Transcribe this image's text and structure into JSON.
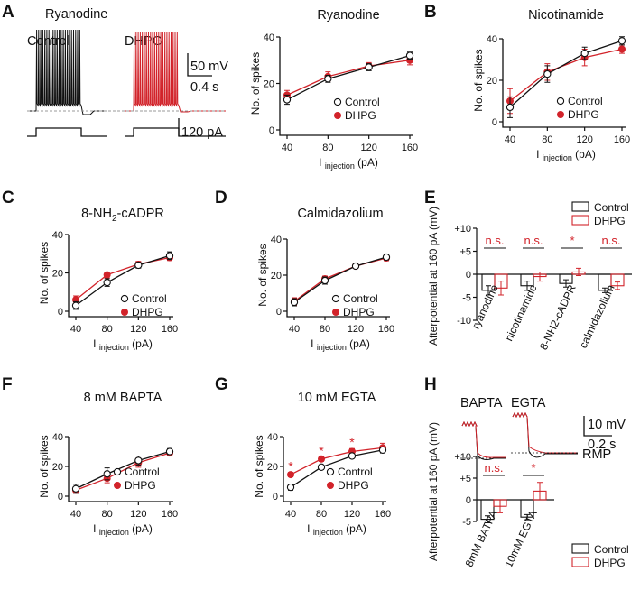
{
  "figure": {
    "panel_letters": [
      "A",
      "B",
      "C",
      "D",
      "E",
      "F",
      "G",
      "H"
    ],
    "legend": {
      "control": "Control",
      "dhpg": "DHPG"
    },
    "colors": {
      "control": "#111111",
      "dhpg": "#d2232a",
      "gray": "#999999"
    },
    "ylabel_spikes": "No. of spikes",
    "xlabel_main": "I",
    "xlabel_sub": "injection",
    "xlabel_unit": "(pA)",
    "afterpotential_label": "Afterpotential at 160 pA (mV)",
    "panel_a_traces": {
      "title": "Ryanodine",
      "control_label": "Control",
      "dhpg_label": "DHPG",
      "scale_mv": "50 mV",
      "scale_s": "0.4 s",
      "scale_pa": "120 pA"
    },
    "panel_h_traces": {
      "bapta_label": "BAPTA",
      "egta_label": "EGTA",
      "scale_mv": "10 mV",
      "scale_s": "0.2 s",
      "rmp_label": "RMP"
    }
  },
  "chart_data": [
    {
      "id": "A",
      "type": "line",
      "title": "Ryanodine",
      "x": [
        40,
        80,
        120,
        160
      ],
      "xlim": [
        40,
        160
      ],
      "ylim": [
        0,
        40
      ],
      "xticks": [
        "40",
        "80",
        "120",
        "160"
      ],
      "yticks": [
        "0",
        "20",
        "40"
      ],
      "series": [
        {
          "name": "Control",
          "values": [
            13,
            22,
            27,
            32
          ],
          "err": [
            2,
            1.5,
            1.5,
            1.5
          ]
        },
        {
          "name": "DHPG",
          "values": [
            15,
            23,
            27.5,
            30
          ],
          "err": [
            2,
            2,
            1.5,
            2
          ]
        }
      ]
    },
    {
      "id": "B",
      "type": "line",
      "title": "Nicotinamide",
      "x": [
        40,
        80,
        120,
        160
      ],
      "xlim": [
        40,
        160
      ],
      "ylim": [
        0,
        40
      ],
      "xticks": [
        "40",
        "80",
        "120",
        "160"
      ],
      "yticks": [
        "0",
        "20",
        "40"
      ],
      "series": [
        {
          "name": "Control",
          "values": [
            7,
            23,
            33,
            39
          ],
          "err": [
            5,
            4,
            3,
            2
          ]
        },
        {
          "name": "DHPG",
          "values": [
            10,
            24,
            31,
            35
          ],
          "err": [
            6,
            4,
            4,
            2
          ]
        }
      ]
    },
    {
      "id": "C",
      "type": "line",
      "title": "8-NH",
      "title_sub": "2",
      "title_rest": "-cADPR",
      "x": [
        40,
        80,
        120,
        160
      ],
      "xlim": [
        40,
        160
      ],
      "ylim": [
        0,
        40
      ],
      "xticks": [
        "40",
        "80",
        "120",
        "160"
      ],
      "yticks": [
        "0",
        "20",
        "40"
      ],
      "series": [
        {
          "name": "Control",
          "values": [
            3,
            15,
            24,
            29
          ],
          "err": [
            2,
            2,
            1.5,
            2
          ]
        },
        {
          "name": "DHPG",
          "values": [
            6,
            19,
            24.5,
            28
          ],
          "err": [
            2,
            1.5,
            1.5,
            1.5
          ]
        }
      ]
    },
    {
      "id": "D",
      "type": "line",
      "title": "Calmidazolium",
      "x": [
        40,
        80,
        120,
        160
      ],
      "xlim": [
        40,
        160
      ],
      "ylim": [
        0,
        40
      ],
      "xticks": [
        "40",
        "80",
        "120",
        "160"
      ],
      "yticks": [
        "0",
        "20",
        "40"
      ],
      "series": [
        {
          "name": "Control",
          "values": [
            5,
            17,
            25,
            30
          ],
          "err": [
            2,
            2,
            1,
            1.5
          ]
        },
        {
          "name": "DHPG",
          "values": [
            5.5,
            18,
            25,
            29.5
          ],
          "err": [
            2,
            1.5,
            1,
            1.5
          ]
        }
      ]
    },
    {
      "id": "E",
      "type": "bar",
      "ylabel": "Afterpotential at 160 pA (mV)",
      "categories": [
        "ryanodine",
        "nicotinamide",
        "8-NH2-cADPR",
        "calmidazolium"
      ],
      "ylim": [
        -10,
        10
      ],
      "yticks": [
        "-10",
        "-5",
        "0",
        "+5",
        "+10"
      ],
      "significance": [
        "n.s.",
        "n.s.",
        "*",
        "n.s."
      ],
      "series": [
        {
          "name": "Control",
          "values": [
            -3.5,
            -2.5,
            -2,
            -3.5
          ],
          "err": [
            1,
            1,
            0.8,
            0.5
          ]
        },
        {
          "name": "DHPG",
          "values": [
            -3,
            -0.5,
            0.5,
            -2.5
          ],
          "err": [
            1.5,
            1,
            0.8,
            0.8
          ]
        }
      ]
    },
    {
      "id": "F",
      "type": "line",
      "title": "8 mM BAPTA",
      "x": [
        40,
        80,
        120,
        160
      ],
      "xlim": [
        40,
        160
      ],
      "ylim": [
        0,
        40
      ],
      "xticks": [
        "40",
        "80",
        "120",
        "160"
      ],
      "yticks": [
        "0",
        "20",
        "40"
      ],
      "series": [
        {
          "name": "Control",
          "values": [
            5,
            15,
            24,
            30
          ],
          "err": [
            3,
            4,
            3,
            2
          ]
        },
        {
          "name": "DHPG",
          "values": [
            4,
            12,
            22.5,
            29
          ],
          "err": [
            2,
            3,
            3,
            2
          ]
        }
      ]
    },
    {
      "id": "G",
      "type": "line",
      "title": "10 mM EGTA",
      "x": [
        40,
        80,
        120,
        160
      ],
      "xlim": [
        40,
        160
      ],
      "ylim": [
        0,
        40
      ],
      "xticks": [
        "40",
        "80",
        "120",
        "160"
      ],
      "yticks": [
        "0",
        "20",
        "40"
      ],
      "stars_at": [
        40,
        80,
        120
      ],
      "series": [
        {
          "name": "Control",
          "values": [
            6,
            19.5,
            27,
            31
          ],
          "err": [
            2,
            1.5,
            1.5,
            2
          ]
        },
        {
          "name": "DHPG",
          "values": [
            14.5,
            25,
            30,
            32.5
          ],
          "err": [
            1.5,
            1.5,
            2,
            3
          ]
        }
      ]
    },
    {
      "id": "H",
      "type": "bar",
      "ylabel": "Afterpotential at 160 pA (mV)",
      "categories": [
        "8mM BATPA",
        "10mM EGTA"
      ],
      "ylim": [
        -5,
        10
      ],
      "yticks": [
        "-5",
        "0",
        "+5",
        "+10"
      ],
      "significance": [
        "n.s.",
        "*"
      ],
      "series": [
        {
          "name": "Control",
          "values": [
            -4.5,
            -4
          ],
          "err": [
            0.8,
            0.6
          ]
        },
        {
          "name": "DHPG",
          "values": [
            -1.5,
            2
          ],
          "err": [
            1.5,
            2
          ]
        }
      ]
    }
  ]
}
